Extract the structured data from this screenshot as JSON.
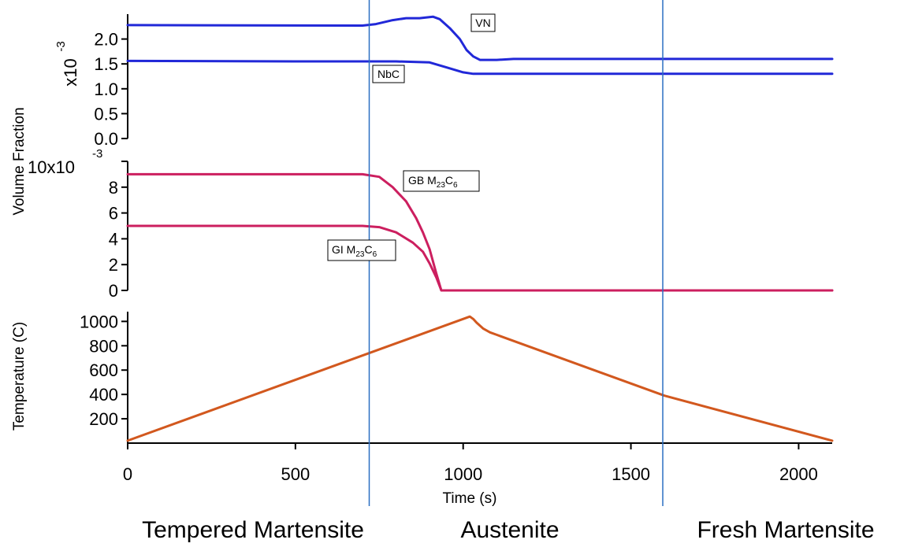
{
  "chart_data": [
    {
      "type": "line",
      "panel": "precipitates-vn-nbc",
      "ylabel": "Volume Fraction",
      "yscale_label": "x10",
      "yscale_exp": "-3",
      "ylim": [
        0,
        2.5
      ],
      "yticks": [
        0,
        0.5,
        1,
        1.5,
        2
      ],
      "ytick_labels": [
        "0.0",
        "0.5",
        "1.0",
        "1.5",
        "2.0"
      ],
      "xlim": [
        0,
        2100
      ],
      "series": [
        {
          "name": "VN",
          "color": "#2128d8",
          "x": [
            0,
            700,
            740,
            790,
            830,
            870,
            910,
            930,
            960,
            990,
            1010,
            1030,
            1050,
            1100,
            1150,
            2100
          ],
          "y": [
            2.28,
            2.27,
            2.3,
            2.38,
            2.42,
            2.42,
            2.45,
            2.4,
            2.22,
            2.0,
            1.78,
            1.65,
            1.58,
            1.58,
            1.6,
            1.6
          ]
        },
        {
          "name": "NbC",
          "color": "#2128d8",
          "x": [
            0,
            500,
            800,
            900,
            950,
            1000,
            1030,
            2100
          ],
          "y": [
            1.56,
            1.55,
            1.55,
            1.53,
            1.43,
            1.33,
            1.3,
            1.3
          ]
        }
      ]
    },
    {
      "type": "line",
      "panel": "precipitates-m23c6",
      "ylabel": "Volume Fraction",
      "yscale_label": "10x10",
      "yscale_exp": "-3",
      "ylim": [
        0,
        10
      ],
      "yticks": [
        0,
        2,
        4,
        6,
        8,
        10
      ],
      "ytick_labels": [
        "0",
        "2",
        "4",
        "6",
        "8",
        ""
      ],
      "xlim": [
        0,
        2100
      ],
      "series": [
        {
          "name": "GB M23C6",
          "color": "#cc1f5f",
          "x": [
            0,
            700,
            750,
            790,
            830,
            860,
            880,
            900,
            920,
            935,
            2100
          ],
          "y": [
            9,
            9,
            8.8,
            8.0,
            6.9,
            5.6,
            4.5,
            3.2,
            1.3,
            0,
            0
          ]
        },
        {
          "name": "GI M23C6",
          "color": "#cc1f5f",
          "x": [
            0,
            700,
            750,
            800,
            850,
            880,
            900,
            920,
            935,
            2100
          ],
          "y": [
            5,
            5,
            4.9,
            4.5,
            3.7,
            3.0,
            2.1,
            1.0,
            0,
            0
          ]
        }
      ]
    },
    {
      "type": "line",
      "panel": "temperature",
      "ylabel": "Temperature (C)",
      "xlabel": "Time (s)",
      "ylim": [
        0,
        1080
      ],
      "yticks": [
        200,
        400,
        600,
        800,
        1000
      ],
      "ytick_labels": [
        "200",
        "400",
        "600",
        "800",
        "1000"
      ],
      "xlim": [
        0,
        2100
      ],
      "xticks": [
        0,
        500,
        1000,
        1500,
        2000
      ],
      "xtick_labels": [
        "0",
        "500",
        "1000",
        "1500",
        "2000"
      ],
      "series": [
        {
          "name": "",
          "color": "#d2581e",
          "x": [
            0,
            1020,
            1030,
            1040,
            1060,
            1080,
            1100,
            1600,
            2100
          ],
          "y": [
            20,
            1040,
            1020,
            990,
            940,
            910,
            890,
            390,
            20
          ]
        }
      ]
    }
  ],
  "annotations": {
    "vn": "VN",
    "nbc": "NbC",
    "gb": {
      "main": "GB M",
      "sub1": "23",
      "mid": "C",
      "sub2": "6"
    },
    "gi": {
      "main": "GI M",
      "sub1": "23",
      "mid": "C",
      "sub2": "6"
    }
  },
  "phase_boundaries_s": [
    720,
    1595
  ],
  "phase_line_color": "#2b6fc2",
  "phases": {
    "tempered": "Tempered Martensite",
    "austenite": "Austenite",
    "fresh": "Fresh Martensite"
  }
}
